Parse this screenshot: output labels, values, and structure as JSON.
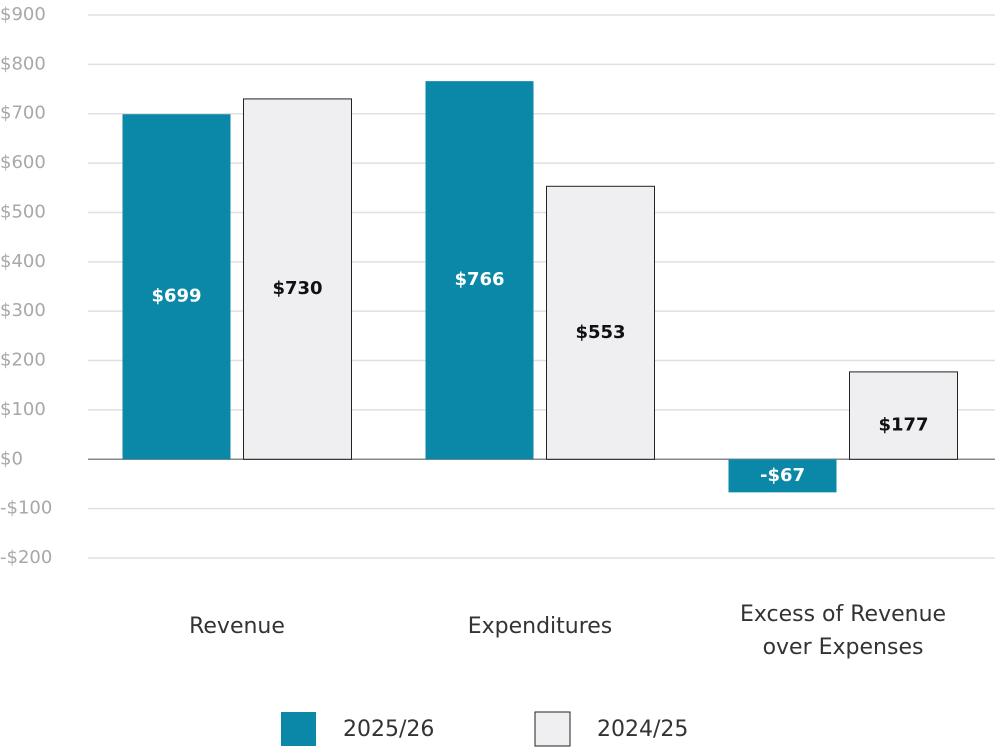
{
  "chart_data": {
    "type": "bar",
    "categories": [
      "Revenue",
      "Expenditures",
      "Excess of Revenue\nover Expenses"
    ],
    "series": [
      {
        "name": "2025/26",
        "color": "#0b88a8",
        "values": [
          699,
          766,
          -67
        ],
        "value_labels": [
          "$699",
          "$766",
          "-$67"
        ]
      },
      {
        "name": "2024/25",
        "color": "#efeff1",
        "values": [
          730,
          553,
          177
        ],
        "value_labels": [
          "$730",
          "$553",
          "$177"
        ]
      }
    ],
    "ylim": [
      -200,
      900
    ],
    "yticks": [
      {
        "value": -200,
        "label": "-$200"
      },
      {
        "value": -100,
        "label": "-$100"
      },
      {
        "value": 0,
        "label": "$0"
      },
      {
        "value": 100,
        "label": "$100"
      },
      {
        "value": 200,
        "label": "$200"
      },
      {
        "value": 300,
        "label": "$300"
      },
      {
        "value": 400,
        "label": "$400"
      },
      {
        "value": 500,
        "label": "$500"
      },
      {
        "value": 600,
        "label": "$600"
      },
      {
        "value": 700,
        "label": "$700"
      },
      {
        "value": 800,
        "label": "$800"
      },
      {
        "value": 900,
        "label": "$900"
      }
    ],
    "grid": true,
    "legend": "bottom"
  }
}
